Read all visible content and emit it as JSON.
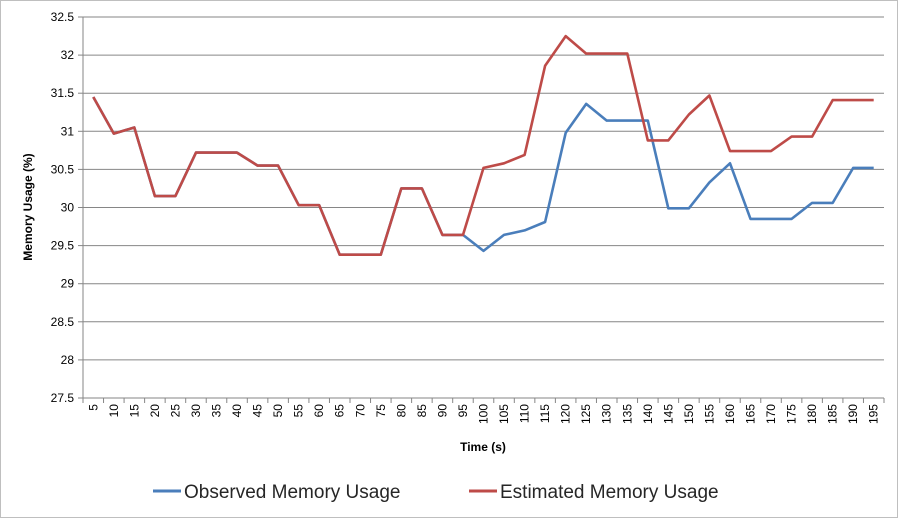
{
  "chart_data": {
    "type": "line",
    "xlabel": "Time (s)",
    "ylabel": "Memory Usage (%)",
    "ylim": [
      27.5,
      32.5
    ],
    "yticks": [
      "27.5",
      "28",
      "28.5",
      "29",
      "29.5",
      "30",
      "30.5",
      "31",
      "31.5",
      "32",
      "32.5"
    ],
    "grid": "horizontal",
    "legend_position": "bottom",
    "categories": [
      "5",
      "10",
      "15",
      "20",
      "25",
      "30",
      "35",
      "40",
      "45",
      "50",
      "55",
      "60",
      "65",
      "70",
      "75",
      "80",
      "85",
      "90",
      "95",
      "100",
      "105",
      "110",
      "115",
      "120",
      "125",
      "130",
      "135",
      "140",
      "145",
      "150",
      "155",
      "160",
      "165",
      "170",
      "175",
      "180",
      "185",
      "190",
      "195"
    ],
    "series": [
      {
        "name": "Observed Memory Usage",
        "color": "#4a7ebb",
        "values": [
          31.45,
          30.97,
          31.05,
          30.15,
          30.15,
          30.72,
          30.72,
          30.72,
          30.55,
          30.55,
          30.03,
          30.03,
          29.38,
          29.38,
          29.38,
          30.25,
          30.25,
          29.64,
          29.64,
          29.43,
          29.64,
          29.7,
          29.81,
          30.98,
          31.36,
          31.14,
          31.14,
          31.14,
          29.99,
          29.99,
          30.33,
          30.58,
          29.85,
          29.85,
          29.85,
          30.06,
          30.06,
          30.52,
          30.52
        ]
      },
      {
        "name": "Estimated Memory Usage",
        "color": "#be4b48",
        "values": [
          31.45,
          30.97,
          31.05,
          30.15,
          30.15,
          30.72,
          30.72,
          30.72,
          30.55,
          30.55,
          30.03,
          30.03,
          29.38,
          29.38,
          29.38,
          30.25,
          30.25,
          29.64,
          29.64,
          30.52,
          30.58,
          30.69,
          31.86,
          32.25,
          32.02,
          32.02,
          32.02,
          30.88,
          30.88,
          31.22,
          31.47,
          30.74,
          30.74,
          30.74,
          30.93,
          30.93,
          31.41,
          31.41,
          31.41
        ]
      }
    ]
  }
}
